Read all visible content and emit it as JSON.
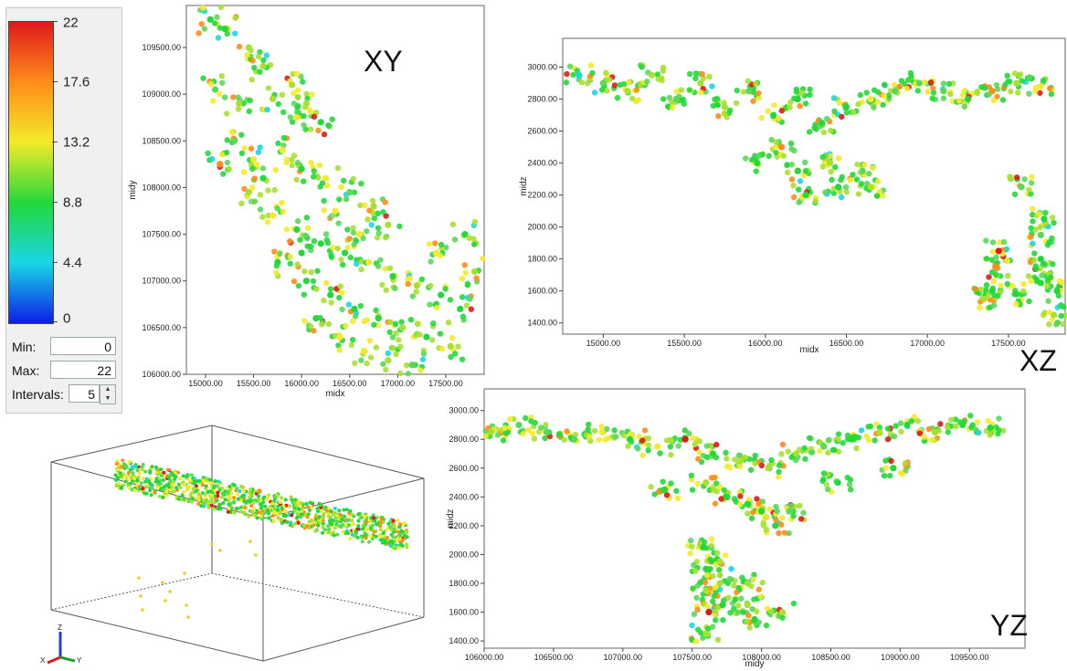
{
  "legend": {
    "ticks": [
      "22",
      "17.6",
      "13.2",
      "8.8",
      "4.4",
      "0"
    ],
    "min_label": "Min:",
    "min_value": "0",
    "max_label": "Max:",
    "max_value": "22",
    "intervals_label": "Intervals:",
    "intervals_value": "5",
    "colors": [
      "#e0191b",
      "#ff8c1a",
      "#f4ea2a",
      "#23d83a",
      "#19d6e6",
      "#0d1ee6"
    ]
  },
  "chart_data": [
    {
      "type": "scatter",
      "view": "XY",
      "title": "XY",
      "xlabel": "midx",
      "ylabel": "midy",
      "xlim": [
        14800,
        17900
      ],
      "ylim": [
        106000,
        109950
      ],
      "xticks": [
        "15000.00",
        "15500.00",
        "16000.00",
        "16500.00",
        "17000.00",
        "17500.00"
      ],
      "yticks": [
        "106000.00",
        "106500.00",
        "107000.00",
        "107500.00",
        "108000.00",
        "108500.00",
        "109000.00",
        "109500.00"
      ],
      "series": [
        {
          "values": [
            [
              15050,
              109800
            ],
            [
              15200,
              109700
            ],
            [
              15450,
              109500
            ],
            [
              15600,
              109300
            ],
            [
              15100,
              109050
            ],
            [
              15350,
              108900
            ],
            [
              15700,
              108950
            ],
            [
              15900,
              109100
            ],
            [
              16050,
              108900
            ],
            [
              16200,
              108700
            ],
            [
              15300,
              108500
            ],
            [
              15500,
              108300
            ],
            [
              15800,
              108400
            ],
            [
              16000,
              108200
            ],
            [
              16250,
              108100
            ],
            [
              16500,
              107950
            ],
            [
              16750,
              107800
            ],
            [
              16900,
              107600
            ],
            [
              15450,
              107950
            ],
            [
              15700,
              107700
            ],
            [
              15950,
              107550
            ],
            [
              16200,
              107400
            ],
            [
              16450,
              107300
            ],
            [
              16700,
              107200
            ],
            [
              16950,
              107050
            ],
            [
              17200,
              106950
            ],
            [
              17450,
              106850
            ],
            [
              15750,
              107200
            ],
            [
              16050,
              107000
            ],
            [
              16300,
              106850
            ],
            [
              16550,
              106700
            ],
            [
              16800,
              106600
            ],
            [
              17050,
              106500
            ],
            [
              17300,
              106400
            ],
            [
              17550,
              106300
            ],
            [
              16400,
              106400
            ],
            [
              16650,
              106250
            ],
            [
              16900,
              106150
            ],
            [
              17150,
              106100
            ],
            [
              17650,
              106700
            ],
            [
              17800,
              107100
            ],
            [
              17700,
              107500
            ],
            [
              15150,
              108250
            ],
            [
              15950,
              108750
            ],
            [
              16350,
              107750
            ],
            [
              16600,
              107500
            ],
            [
              16150,
              106600
            ],
            [
              17400,
              107300
            ],
            [
              15600,
              108100
            ],
            [
              16000,
              107300
            ]
          ]
        }
      ]
    },
    {
      "type": "scatter",
      "view": "XZ",
      "title": "XZ",
      "xlabel": "midx",
      "ylabel": "midz",
      "xlim": [
        14750,
        17850
      ],
      "ylim": [
        1330,
        3180
      ],
      "xticks": [
        "15000.00",
        "15500.00",
        "16000.00",
        "16500.00",
        "17000.00",
        "17500.00"
      ],
      "yticks": [
        "1400.00",
        "1600.00",
        "1800.00",
        "2000.00",
        "2200.00",
        "2400.00",
        "2600.00",
        "2800.00",
        "3000.00"
      ],
      "series": [
        {
          "values": [
            [
              14850,
              2950
            ],
            [
              15000,
              2900
            ],
            [
              15150,
              2850
            ],
            [
              15300,
              2950
            ],
            [
              15450,
              2800
            ],
            [
              15600,
              2900
            ],
            [
              15750,
              2750
            ],
            [
              15900,
              2850
            ],
            [
              16050,
              2700
            ],
            [
              16200,
              2800
            ],
            [
              16350,
              2650
            ],
            [
              16500,
              2750
            ],
            [
              16650,
              2800
            ],
            [
              16800,
              2850
            ],
            [
              16950,
              2900
            ],
            [
              17100,
              2850
            ],
            [
              17250,
              2800
            ],
            [
              17400,
              2850
            ],
            [
              17550,
              2900
            ],
            [
              17700,
              2880
            ],
            [
              16100,
              2500
            ],
            [
              16200,
              2350
            ],
            [
              16250,
              2200
            ],
            [
              16400,
              2400
            ],
            [
              16450,
              2250
            ],
            [
              16600,
              2350
            ],
            [
              16650,
              2250
            ],
            [
              15950,
              2400
            ],
            [
              17350,
              1550
            ],
            [
              17400,
              1600
            ],
            [
              17420,
              1750
            ],
            [
              17440,
              1850
            ],
            [
              17550,
              1580
            ],
            [
              17580,
              2250
            ],
            [
              17700,
              1650
            ],
            [
              17700,
              1800
            ],
            [
              17700,
              1950
            ],
            [
              17720,
              2050
            ],
            [
              17780,
              1450
            ],
            [
              17800,
              1600
            ]
          ]
        }
      ]
    },
    {
      "type": "scatter",
      "view": "YZ",
      "title": "YZ",
      "xlabel": "midy",
      "ylabel": "midz",
      "xlim": [
        106000,
        109900
      ],
      "ylim": [
        1350,
        3150
      ],
      "xticks": [
        "106000.00",
        "106500.00",
        "107000.00",
        "107500.00",
        "108000.00",
        "108500.00",
        "109000.00",
        "109500.00"
      ],
      "yticks": [
        "1400.00",
        "1600.00",
        "1800.00",
        "2000.00",
        "2200.00",
        "2400.00",
        "2600.00",
        "2800.00",
        "3000.00"
      ],
      "series": [
        {
          "values": [
            [
              106050,
              2850
            ],
            [
              106250,
              2900
            ],
            [
              106450,
              2850
            ],
            [
              106650,
              2800
            ],
            [
              106850,
              2850
            ],
            [
              107050,
              2800
            ],
            [
              107250,
              2750
            ],
            [
              107450,
              2800
            ],
            [
              107650,
              2700
            ],
            [
              107850,
              2650
            ],
            [
              108050,
              2600
            ],
            [
              108250,
              2700
            ],
            [
              108450,
              2750
            ],
            [
              108650,
              2800
            ],
            [
              108850,
              2850
            ],
            [
              109050,
              2900
            ],
            [
              109250,
              2850
            ],
            [
              109450,
              2900
            ],
            [
              109650,
              2880
            ],
            [
              107600,
              2500
            ],
            [
              107750,
              2400
            ],
            [
              107900,
              2350
            ],
            [
              108000,
              2300
            ],
            [
              108100,
              2200
            ],
            [
              108200,
              2300
            ],
            [
              107300,
              2450
            ],
            [
              108550,
              2500
            ],
            [
              108950,
              2600
            ],
            [
              107580,
              2050
            ],
            [
              107600,
              1900
            ],
            [
              107600,
              1750
            ],
            [
              107620,
              1600
            ],
            [
              107600,
              1450
            ],
            [
              107700,
              1950
            ],
            [
              107700,
              1800
            ],
            [
              107720,
              1650
            ],
            [
              107900,
              1800
            ],
            [
              107900,
              1650
            ],
            [
              107950,
              1550
            ],
            [
              108150,
              1600
            ]
          ]
        }
      ]
    }
  ],
  "view3d": {
    "axis_z": "Z",
    "axis_x": "X",
    "axis_y": "Y",
    "axis_colors": [
      "#2a3cd6",
      "#d42020",
      "#20a030"
    ]
  }
}
